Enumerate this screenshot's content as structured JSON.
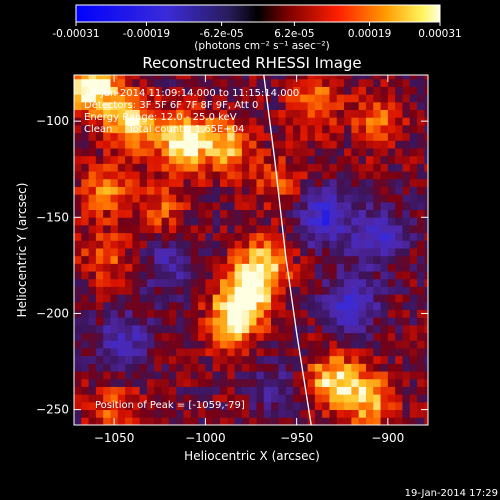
{
  "colorbar": {
    "tick_labels": [
      "-0.00031",
      "-0.00019",
      "-6.2e-05",
      "6.2e-05",
      "0.00019",
      "0.00031"
    ],
    "tick_values": [
      -0.00031,
      -0.00019,
      -6.2e-05,
      6.2e-05,
      0.00019,
      0.00031
    ],
    "range": [
      -0.00031,
      0.00031
    ],
    "units": "(photons cm⁻² s⁻¹ asec⁻²)"
  },
  "chart_data": {
    "type": "heatmap",
    "title": "Reconstructed RHESSI Image",
    "xlabel": "Heliocentric X (arcsec)",
    "ylabel": "Heliocentric Y (arcsec)",
    "xlim": [
      -1072,
      -878
    ],
    "ylim": [
      -258,
      -76
    ],
    "x_ticks": [
      -1050,
      -1000,
      -950,
      -900
    ],
    "y_ticks": [
      -250,
      -200,
      -150,
      -100
    ],
    "x_tick_labels": [
      "−1050",
      "−1000",
      "−950",
      "−900"
    ],
    "y_tick_labels": [
      "−250",
      "−200",
      "−150",
      "−100"
    ],
    "peak": [
      -1059,
      -79
    ],
    "limb_curve": [
      [
        -968,
        -76
      ],
      [
        -962,
        -120
      ],
      [
        -956,
        -170
      ],
      [
        -950,
        -210
      ],
      [
        -942,
        -258
      ]
    ],
    "blobs": [
      {
        "x": -1062,
        "y": -82,
        "amp": 0.00031
      },
      {
        "x": -1040,
        "y": -100,
        "amp": 0.00022
      },
      {
        "x": -1012,
        "y": -110,
        "amp": 0.00028
      },
      {
        "x": -988,
        "y": -112,
        "amp": 0.0002
      },
      {
        "x": -1055,
        "y": -135,
        "amp": 0.00015
      },
      {
        "x": -1025,
        "y": -145,
        "amp": 0.00012
      },
      {
        "x": -978,
        "y": -190,
        "amp": 0.00027
      },
      {
        "x": -968,
        "y": -175,
        "amp": 0.00022
      },
      {
        "x": -986,
        "y": -205,
        "amp": 0.0002
      },
      {
        "x": -1055,
        "y": -170,
        "amp": 0.00012
      },
      {
        "x": -1050,
        "y": -250,
        "amp": 0.00012
      },
      {
        "x": -930,
        "y": -235,
        "amp": 0.00024
      },
      {
        "x": -910,
        "y": -245,
        "amp": 0.0002
      },
      {
        "x": -940,
        "y": -90,
        "amp": 0.00016
      },
      {
        "x": -905,
        "y": -100,
        "amp": 0.00013
      },
      {
        "x": -960,
        "y": -130,
        "amp": 0.0001
      },
      {
        "x": -935,
        "y": -150,
        "amp": -0.00022
      },
      {
        "x": -905,
        "y": -160,
        "amp": -0.00018
      },
      {
        "x": -920,
        "y": -195,
        "amp": -0.0002
      },
      {
        "x": -1045,
        "y": -215,
        "amp": -0.00016
      },
      {
        "x": -1020,
        "y": -175,
        "amp": -0.00012
      },
      {
        "x": -960,
        "y": -240,
        "amp": -0.0001
      }
    ]
  },
  "annotations": {
    "time_range": "19-Jan-2014 11:09:14.000 to 11:15:14.000",
    "detectors": "Detectors: 3F 5F 6F 7F 8F 9F, Att 0",
    "energy": "Energy Range: 12.0 - 25.0 keV",
    "clean": "Clean     Total counts: 1.65E+04",
    "peak_text": "Position of Peak = [-1059,-79]"
  },
  "footer_timestamp": "19-Jan-2014 17:29"
}
